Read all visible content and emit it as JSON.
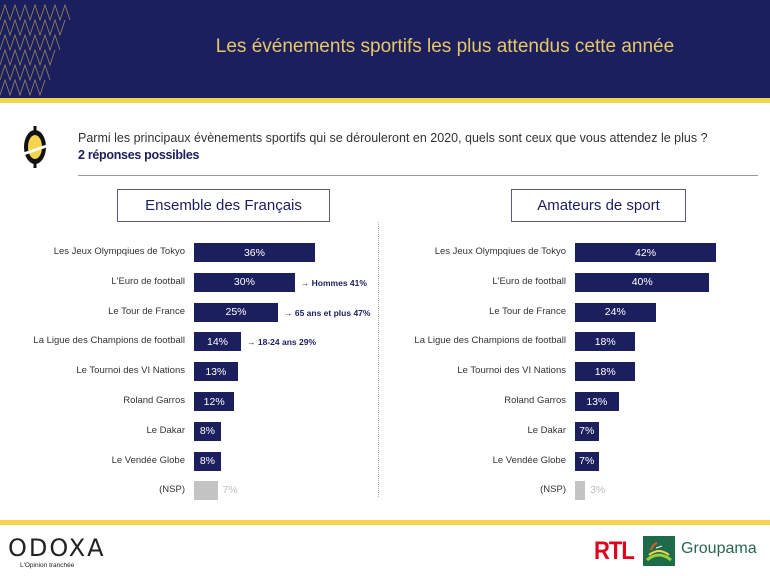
{
  "header": {
    "title": "Les événements sportifs les plus attendus cette année"
  },
  "question": {
    "text": "Parmi les principaux évènements sportifs qui se dérouleront en 2020, quels sont ceux que vous attendez le plus ?",
    "subtext": "2 réponses possibles"
  },
  "colors": {
    "bar": "#1b1f5e",
    "nsp_bar": "#c4c4c4",
    "accent_yellow": "#f6d44e",
    "title_gold": "#e8c766"
  },
  "chart_data": [
    {
      "type": "bar",
      "orientation": "horizontal",
      "title": "Ensemble des Français",
      "categories": [
        "Les Jeux Olympqiues de Tokyo",
        "L'Euro de football",
        "Le Tour de France",
        "La Ligue des Champions de football",
        "Le Tournoi des VI Nations",
        "Roland Garros",
        "Le Dakar",
        "Le Vendée Globe",
        "(NSP)"
      ],
      "values": [
        36,
        30,
        25,
        14,
        13,
        12,
        8,
        8,
        7
      ],
      "labels": [
        "36%",
        "30%",
        "25%",
        "14%",
        "13%",
        "12%",
        "8%",
        "8%",
        "7%"
      ],
      "annotations": [
        "",
        "→ Hommes 41%",
        "→ 65 ans et plus 47%",
        "→ 18-24 ans 29%",
        "",
        "",
        "",
        "",
        ""
      ],
      "unit": "%",
      "xlim": [
        0,
        45
      ]
    },
    {
      "type": "bar",
      "orientation": "horizontal",
      "title": "Amateurs de sport",
      "categories": [
        "Les Jeux Olympqiues de Tokyo",
        "L'Euro de football",
        "Le Tour de France",
        "La Ligue des Champions de football",
        "Le Tournoi des VI Nations",
        "Roland Garros",
        "Le Dakar",
        "Le Vendée Globe",
        "(NSP)"
      ],
      "values": [
        42,
        40,
        24,
        18,
        18,
        13,
        7,
        7,
        3
      ],
      "labels": [
        "42%",
        "40%",
        "24%",
        "18%",
        "18%",
        "13%",
        "7%",
        "7%",
        "3%"
      ],
      "annotations": [
        "",
        "",
        "",
        "",
        "",
        "",
        "",
        "",
        ""
      ],
      "unit": "%",
      "xlim": [
        0,
        45
      ]
    }
  ],
  "footer": {
    "brand": "ODOXA",
    "tagline": "L'Opinion tranchée",
    "partner1": "RTL",
    "partner2": "Groupama"
  }
}
